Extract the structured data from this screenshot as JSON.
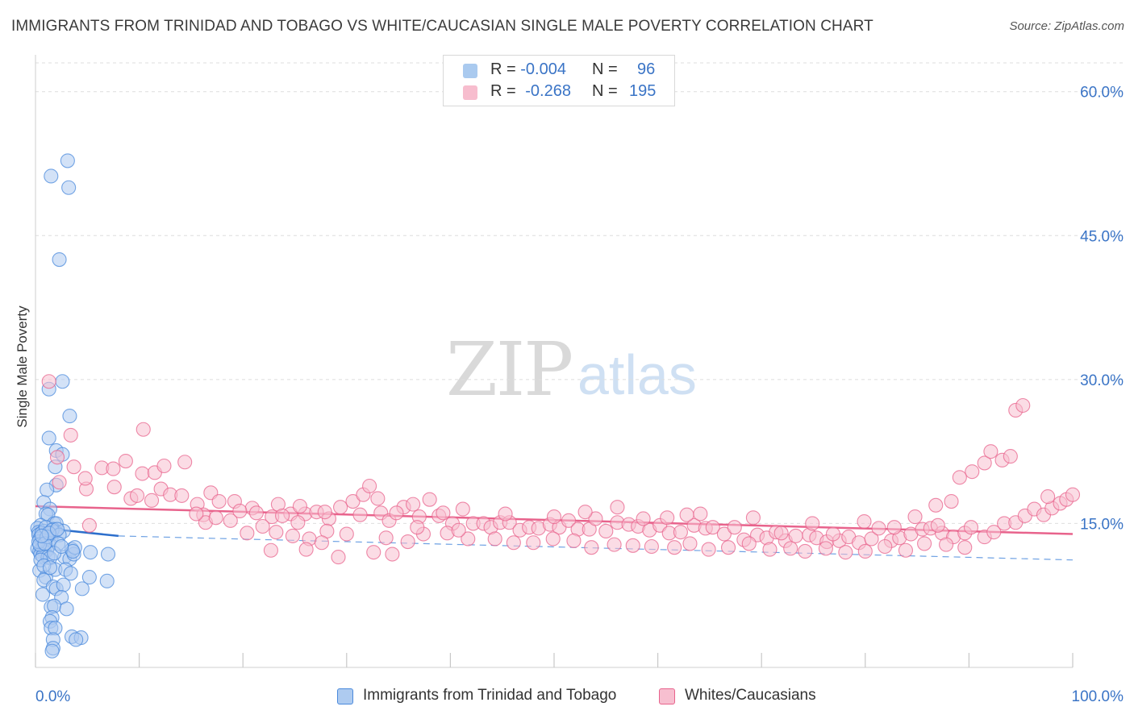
{
  "title": "IMMIGRANTS FROM TRINIDAD AND TOBAGO VS WHITE/CAUCASIAN SINGLE MALE POVERTY CORRELATION CHART",
  "source": "Source: ZipAtlas.com",
  "watermark": {
    "zip": "ZIP",
    "atlas": "atlas"
  },
  "legend": {
    "rows": [
      {
        "r_label": "R =",
        "r_value": "-0.004",
        "n_label": "N =",
        "n_value": "96",
        "color": "#8db8ea"
      },
      {
        "r_label": "R =",
        "r_value": "-0.268",
        "n_label": "N =",
        "n_value": "195",
        "color": "#f4a7be"
      }
    ]
  },
  "bottom_legend": [
    {
      "label": "Immigrants from Trinidad and Tobago",
      "color": "#aecbf0"
    },
    {
      "label": "Whites/Caucasians",
      "color": "#f7bfd0"
    }
  ],
  "chart_data": {
    "type": "scatter",
    "xlabel": "",
    "ylabel": "Single Male Poverty",
    "xlim": [
      0,
      100
    ],
    "ylim": [
      0,
      63
    ],
    "x_tick_labels": [
      "0.0%",
      "100.0%"
    ],
    "y_ticks": [
      15,
      30,
      45,
      60
    ],
    "y_tick_labels": [
      "15.0%",
      "30.0%",
      "45.0%",
      "60.0%"
    ],
    "grid": "horizontal dashed",
    "legend_placement": "top-center",
    "series": [
      {
        "name": "Immigrants from Trinidad and Tobago",
        "color": "#4a89dc",
        "fill": "#aecbf0",
        "trend": {
          "x": [
            0,
            8
          ],
          "y": [
            14.6,
            13.7
          ],
          "extended_to_x": 100,
          "extended_y": 11.2
        },
        "points": [
          [
            1.5,
            51.2
          ],
          [
            3.1,
            52.8
          ],
          [
            3.2,
            50.0
          ],
          [
            2.3,
            42.5
          ],
          [
            1.3,
            29.0
          ],
          [
            2.6,
            29.8
          ],
          [
            3.3,
            26.2
          ],
          [
            1.3,
            23.9
          ],
          [
            2.0,
            22.6
          ],
          [
            2.6,
            22.2
          ],
          [
            1.9,
            20.9
          ],
          [
            2.0,
            19.0
          ],
          [
            1.1,
            18.5
          ],
          [
            0.8,
            17.2
          ],
          [
            1.4,
            16.5
          ],
          [
            1.0,
            16.0
          ],
          [
            1.2,
            15.9
          ],
          [
            1.8,
            15.0
          ],
          [
            2.0,
            15.0
          ],
          [
            0.5,
            14.8
          ],
          [
            0.2,
            14.5
          ],
          [
            0.3,
            14.1
          ],
          [
            0.5,
            13.5
          ],
          [
            0.8,
            14.2
          ],
          [
            1.0,
            13.9
          ],
          [
            1.7,
            14.4
          ],
          [
            1.9,
            14.1
          ],
          [
            2.7,
            14.2
          ],
          [
            0.3,
            13.8
          ],
          [
            0.4,
            13.4
          ],
          [
            0.7,
            13.0
          ],
          [
            0.9,
            13.3
          ],
          [
            1.3,
            12.7
          ],
          [
            1.5,
            13.4
          ],
          [
            0.2,
            12.4
          ],
          [
            0.4,
            12.1
          ],
          [
            0.6,
            12.4
          ],
          [
            0.8,
            12.6
          ],
          [
            0.9,
            12.0
          ],
          [
            1.1,
            12.2
          ],
          [
            0.5,
            11.8
          ],
          [
            0.7,
            11.6
          ],
          [
            1.2,
            11.5
          ],
          [
            1.4,
            11.4
          ],
          [
            2.8,
            11.5
          ],
          [
            3.3,
            11.3
          ],
          [
            3.5,
            12.3
          ],
          [
            3.7,
            11.8
          ],
          [
            3.8,
            12.5
          ],
          [
            5.3,
            12.0
          ],
          [
            7.0,
            11.8
          ],
          [
            0.4,
            10.1
          ],
          [
            1.0,
            9.4
          ],
          [
            1.9,
            10.2
          ],
          [
            2.9,
            10.2
          ],
          [
            3.4,
            9.8
          ],
          [
            5.2,
            9.4
          ],
          [
            0.8,
            9.1
          ],
          [
            1.7,
            8.4
          ],
          [
            2.0,
            8.2
          ],
          [
            2.7,
            8.6
          ],
          [
            4.5,
            8.2
          ],
          [
            0.7,
            7.6
          ],
          [
            2.5,
            7.3
          ],
          [
            1.5,
            6.3
          ],
          [
            1.8,
            6.4
          ],
          [
            3.0,
            6.1
          ],
          [
            1.6,
            5.2
          ],
          [
            1.4,
            4.8
          ],
          [
            1.5,
            4.1
          ],
          [
            1.9,
            4.1
          ],
          [
            3.5,
            3.2
          ],
          [
            4.4,
            3.1
          ],
          [
            1.7,
            2.9
          ],
          [
            3.9,
            2.9
          ],
          [
            1.7,
            2.0
          ],
          [
            1.6,
            1.7
          ],
          [
            6.9,
            9.0
          ],
          [
            0.3,
            13.1
          ],
          [
            0.6,
            14.0
          ],
          [
            1.0,
            14.6
          ],
          [
            1.6,
            14.3
          ],
          [
            2.3,
            13.8
          ],
          [
            0.5,
            11.2
          ],
          [
            0.8,
            10.6
          ],
          [
            1.4,
            10.4
          ],
          [
            2.2,
            12.9
          ],
          [
            3.6,
            12.1
          ],
          [
            0.4,
            12.8
          ],
          [
            1.1,
            13.6
          ],
          [
            1.8,
            11.9
          ],
          [
            2.5,
            12.6
          ],
          [
            0.9,
            12.9
          ],
          [
            1.3,
            14.0
          ],
          [
            0.6,
            13.7
          ],
          [
            2.1,
            14.4
          ]
        ]
      },
      {
        "name": "Whites/Caucasians",
        "color": "#e8638c",
        "fill": "#f7bfd0",
        "trend": {
          "x": [
            0,
            100
          ],
          "y": [
            16.8,
            13.9
          ]
        },
        "points": [
          [
            1.3,
            29.8
          ],
          [
            2.1,
            21.9
          ],
          [
            3.4,
            24.2
          ],
          [
            2.3,
            19.3
          ],
          [
            3.7,
            20.9
          ],
          [
            4.9,
            18.6
          ],
          [
            4.8,
            19.7
          ],
          [
            6.4,
            20.8
          ],
          [
            7.5,
            20.7
          ],
          [
            8.7,
            21.5
          ],
          [
            10.4,
            24.8
          ],
          [
            10.3,
            20.2
          ],
          [
            11.5,
            20.3
          ],
          [
            12.4,
            21.0
          ],
          [
            14.4,
            21.4
          ],
          [
            12.1,
            18.6
          ],
          [
            13.0,
            18.0
          ],
          [
            9.2,
            17.6
          ],
          [
            11.2,
            17.4
          ],
          [
            14.1,
            17.9
          ],
          [
            15.6,
            17.0
          ],
          [
            16.9,
            18.2
          ],
          [
            17.7,
            17.3
          ],
          [
            16.2,
            15.9
          ],
          [
            19.2,
            17.3
          ],
          [
            20.9,
            16.6
          ],
          [
            23.4,
            17.0
          ],
          [
            22.8,
            15.7
          ],
          [
            24.6,
            16.0
          ],
          [
            26.0,
            16.0
          ],
          [
            25.3,
            15.1
          ],
          [
            27.1,
            16.2
          ],
          [
            28.3,
            15.5
          ],
          [
            29.4,
            16.7
          ],
          [
            30.6,
            17.3
          ],
          [
            31.6,
            18.0
          ],
          [
            32.2,
            18.9
          ],
          [
            33.0,
            17.6
          ],
          [
            33.3,
            16.1
          ],
          [
            34.1,
            15.3
          ],
          [
            35.5,
            16.7
          ],
          [
            36.4,
            17.0
          ],
          [
            38.0,
            17.5
          ],
          [
            34.8,
            16.1
          ],
          [
            37.0,
            15.7
          ],
          [
            38.9,
            15.8
          ],
          [
            39.3,
            16.1
          ],
          [
            40.2,
            15.0
          ],
          [
            41.2,
            16.5
          ],
          [
            42.2,
            15.0
          ],
          [
            43.2,
            15.0
          ],
          [
            43.9,
            14.6
          ],
          [
            44.8,
            15.1
          ],
          [
            45.7,
            15.1
          ],
          [
            46.7,
            14.3
          ],
          [
            47.6,
            14.6
          ],
          [
            48.5,
            14.5
          ],
          [
            49.6,
            14.9
          ],
          [
            50.5,
            14.6
          ],
          [
            51.4,
            15.3
          ],
          [
            52.3,
            14.4
          ],
          [
            53.4,
            14.4
          ],
          [
            54.0,
            15.5
          ],
          [
            55.0,
            14.2
          ],
          [
            56.1,
            15.1
          ],
          [
            57.2,
            14.9
          ],
          [
            58.1,
            14.7
          ],
          [
            59.2,
            14.3
          ],
          [
            60.2,
            14.8
          ],
          [
            61.1,
            14.0
          ],
          [
            62.2,
            14.1
          ],
          [
            63.5,
            14.8
          ],
          [
            64.6,
            14.5
          ],
          [
            65.3,
            14.6
          ],
          [
            66.4,
            13.9
          ],
          [
            67.4,
            14.6
          ],
          [
            68.3,
            13.3
          ],
          [
            69.6,
            13.8
          ],
          [
            70.5,
            13.5
          ],
          [
            71.4,
            14.1
          ],
          [
            72.3,
            13.2
          ],
          [
            73.3,
            13.7
          ],
          [
            74.6,
            13.8
          ],
          [
            75.3,
            13.5
          ],
          [
            76.3,
            13.1
          ],
          [
            77.5,
            13.2
          ],
          [
            78.4,
            13.6
          ],
          [
            79.4,
            13.0
          ],
          [
            80.6,
            13.4
          ],
          [
            81.3,
            14.5
          ],
          [
            82.5,
            13.2
          ],
          [
            83.3,
            13.5
          ],
          [
            84.4,
            13.9
          ],
          [
            85.5,
            14.4
          ],
          [
            86.3,
            14.5
          ],
          [
            87.4,
            14.0
          ],
          [
            88.5,
            13.6
          ],
          [
            89.6,
            14.0
          ],
          [
            90.2,
            14.6
          ],
          [
            91.5,
            13.6
          ],
          [
            92.4,
            14.1
          ],
          [
            93.4,
            15.0
          ],
          [
            94.5,
            15.1
          ],
          [
            95.4,
            15.8
          ],
          [
            96.3,
            16.5
          ],
          [
            97.2,
            15.9
          ],
          [
            98.0,
            16.6
          ],
          [
            98.8,
            17.1
          ],
          [
            99.4,
            17.5
          ],
          [
            100.0,
            18.0
          ],
          [
            90.3,
            20.4
          ],
          [
            91.5,
            21.3
          ],
          [
            93.2,
            21.6
          ],
          [
            94.0,
            22.0
          ],
          [
            94.5,
            26.8
          ],
          [
            95.2,
            27.3
          ],
          [
            92.1,
            22.5
          ],
          [
            89.1,
            19.8
          ],
          [
            88.3,
            17.3
          ],
          [
            86.8,
            16.9
          ],
          [
            5.2,
            14.8
          ],
          [
            7.6,
            18.8
          ],
          [
            9.8,
            17.9
          ],
          [
            16.4,
            15.1
          ],
          [
            18.8,
            15.3
          ],
          [
            20.4,
            14.0
          ],
          [
            21.9,
            14.7
          ],
          [
            23.2,
            14.1
          ],
          [
            24.8,
            13.7
          ],
          [
            26.4,
            13.4
          ],
          [
            28.1,
            14.2
          ],
          [
            30.0,
            13.9
          ],
          [
            32.6,
            12.0
          ],
          [
            34.4,
            11.8
          ],
          [
            29.2,
            11.5
          ],
          [
            26.1,
            12.3
          ],
          [
            22.7,
            12.2
          ],
          [
            27.6,
            13.0
          ],
          [
            33.8,
            13.5
          ],
          [
            35.9,
            13.1
          ],
          [
            37.4,
            13.9
          ],
          [
            39.7,
            14.0
          ],
          [
            41.7,
            13.4
          ],
          [
            44.3,
            13.4
          ],
          [
            46.1,
            13.0
          ],
          [
            48.0,
            13.0
          ],
          [
            49.9,
            13.4
          ],
          [
            51.9,
            13.2
          ],
          [
            53.6,
            12.5
          ],
          [
            55.8,
            12.8
          ],
          [
            57.6,
            12.7
          ],
          [
            59.4,
            12.6
          ],
          [
            61.6,
            12.5
          ],
          [
            63.1,
            12.9
          ],
          [
            64.9,
            12.3
          ],
          [
            66.8,
            12.5
          ],
          [
            68.8,
            12.9
          ],
          [
            70.8,
            12.3
          ],
          [
            72.8,
            12.4
          ],
          [
            74.2,
            12.1
          ],
          [
            76.2,
            12.4
          ],
          [
            78.1,
            12.0
          ],
          [
            80.0,
            12.1
          ],
          [
            81.9,
            12.6
          ],
          [
            83.9,
            12.2
          ],
          [
            85.7,
            12.9
          ],
          [
            87.8,
            12.8
          ],
          [
            89.6,
            12.5
          ],
          [
            56.1,
            16.7
          ],
          [
            62.8,
            15.9
          ],
          [
            69.2,
            15.6
          ],
          [
            74.9,
            15.0
          ],
          [
            79.9,
            15.2
          ],
          [
            84.8,
            15.7
          ],
          [
            15.5,
            16.0
          ],
          [
            17.4,
            15.6
          ],
          [
            19.7,
            16.3
          ],
          [
            21.3,
            16.1
          ],
          [
            23.8,
            15.8
          ],
          [
            25.5,
            16.8
          ],
          [
            27.9,
            16.2
          ],
          [
            31.3,
            15.9
          ],
          [
            36.8,
            14.6
          ],
          [
            40.8,
            14.3
          ],
          [
            45.3,
            16.0
          ],
          [
            50.0,
            15.7
          ],
          [
            53.0,
            16.2
          ],
          [
            58.6,
            15.5
          ],
          [
            60.9,
            15.6
          ],
          [
            64.1,
            16.0
          ],
          [
            71.9,
            14.0
          ],
          [
            76.9,
            13.9
          ],
          [
            82.8,
            14.6
          ],
          [
            87.0,
            14.8
          ],
          [
            97.6,
            17.8
          ]
        ]
      }
    ]
  }
}
